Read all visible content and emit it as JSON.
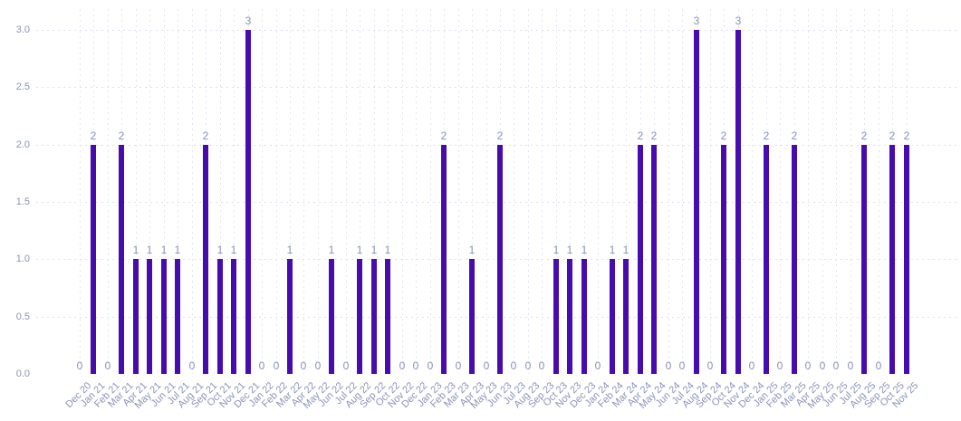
{
  "chart_data": {
    "type": "bar",
    "x": [
      "Dec 20",
      "Jan 21",
      "Feb 21",
      "Mar 21",
      "Apr 21",
      "May 21",
      "Jun 21",
      "Jul 21",
      "Aug 21",
      "Sep 21",
      "Oct 21",
      "Nov 21",
      "Dec 21",
      "Jan 22",
      "Feb 22",
      "Mar 22",
      "Apr 22",
      "May 22",
      "Jun 22",
      "Jul 22",
      "Aug 22",
      "Sep 22",
      "Oct 22",
      "Nov 22",
      "Dec 22",
      "Jan 23",
      "Feb 23",
      "Mar 23",
      "Apr 23",
      "May 23",
      "Jun 23",
      "Jul 23",
      "Aug 23",
      "Sep 23",
      "Oct 23",
      "Nov 23",
      "Dec 23",
      "Jan 24",
      "Feb 24",
      "Mar 24",
      "Apr 24",
      "May 24",
      "Jun 24",
      "Jul 24",
      "Aug 24",
      "Sep 24",
      "Oct 24",
      "Nov 24",
      "Dec 24",
      "Jan 25",
      "Feb 25",
      "Mar 25",
      "Apr 25",
      "May 25",
      "Jun 25",
      "Jul 25",
      "Aug 25",
      "Sep 25",
      "Oct 25",
      "Nov 25"
    ],
    "values": [
      0,
      2,
      0,
      2,
      1,
      1,
      1,
      1,
      0,
      2,
      1,
      1,
      3,
      0,
      0,
      1,
      0,
      0,
      1,
      0,
      1,
      1,
      1,
      0,
      0,
      0,
      2,
      0,
      1,
      0,
      2,
      0,
      0,
      0,
      1,
      1,
      1,
      0,
      1,
      1,
      2,
      2,
      0,
      0,
      3,
      0,
      2,
      3,
      0,
      2,
      0,
      2,
      0,
      0,
      0,
      0,
      2,
      0,
      2,
      2
    ],
    "data_labels_visible": true,
    "title": "",
    "xlabel": "",
    "ylabel": "",
    "ylim": [
      0,
      3
    ],
    "y_tick_labels": [
      "0.0",
      "0.5",
      "1.0",
      "1.5",
      "2.0",
      "2.5",
      "3.0"
    ],
    "y_ticks": [
      0,
      0.5,
      1,
      1.5,
      2,
      2.5,
      3
    ],
    "grid": "dotted",
    "legend": "none",
    "x_label_rotation_deg": 45,
    "colors": {
      "bar": "#470cae",
      "axis_label": "#8b93b8",
      "data_label": "#8a92b8",
      "gridline": "#dde1f0",
      "background": "#ffffff"
    }
  }
}
